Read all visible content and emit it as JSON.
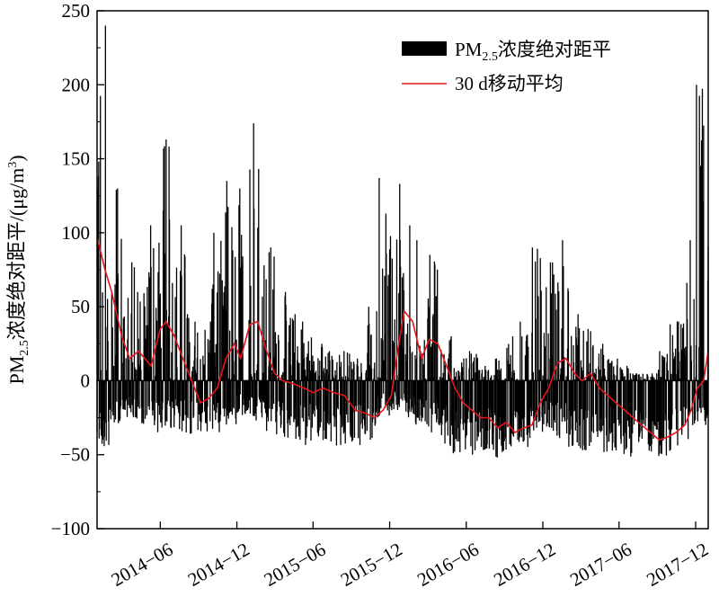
{
  "chart_data": {
    "type": "bar",
    "title": "",
    "ylabel": "PM2.5浓度绝对距平/(μg/m³)",
    "ylabel_parts": {
      "pre": "PM",
      "sub": "2.5",
      "mid": "浓度绝对距平/(μg/m",
      "sup": "3",
      "post": ")"
    },
    "xlabel": "",
    "x_range": [
      "2014-01-01",
      "2017-12-31"
    ],
    "ylim": [
      -100,
      250
    ],
    "y_ticks": [
      -100,
      -50,
      0,
      50,
      100,
      150,
      200,
      250
    ],
    "y_tick_labels": [
      "−100",
      "−50",
      "0",
      "50",
      "100",
      "150",
      "200",
      "250"
    ],
    "x_ticks": [
      "2014-06-01",
      "2014-12-01",
      "2015-06-01",
      "2015-12-01",
      "2016-06-01",
      "2016-12-01",
      "2017-06-01",
      "2017-12-01"
    ],
    "x_tick_labels": [
      "2014−06",
      "2014−12",
      "2015−06",
      "2015−12",
      "2016−06",
      "2016−12",
      "2017−06",
      "2017−12"
    ],
    "grid": false,
    "legend_position": "top-right",
    "legend": [
      {
        "pre": "PM",
        "sub": "2.5",
        "post": "浓度绝对距平",
        "style": "black-bar"
      },
      {
        "text": "30 d移动平均",
        "style": "red-line"
      }
    ],
    "series": [
      {
        "name": "PM2.5浓度绝对距平",
        "kind": "daily-bars",
        "color": "#000000",
        "values_per": "monthly-summary",
        "months": [
          "2014-01",
          "2014-02",
          "2014-03",
          "2014-04",
          "2014-05",
          "2014-06",
          "2014-07",
          "2014-08",
          "2014-09",
          "2014-10",
          "2014-11",
          "2014-12",
          "2015-01",
          "2015-02",
          "2015-03",
          "2015-04",
          "2015-05",
          "2015-06",
          "2015-07",
          "2015-08",
          "2015-09",
          "2015-10",
          "2015-11",
          "2015-12",
          "2016-01",
          "2016-02",
          "2016-03",
          "2016-04",
          "2016-05",
          "2016-06",
          "2016-07",
          "2016-08",
          "2016-09",
          "2016-10",
          "2016-11",
          "2016-12",
          "2017-01",
          "2017-02",
          "2017-03",
          "2017-04",
          "2017-05",
          "2017-06",
          "2017-07",
          "2017-08",
          "2017-09",
          "2017-10",
          "2017-11",
          "2017-12"
        ],
        "monthly_max": [
          240,
          130,
          80,
          60,
          105,
          163,
          105,
          45,
          40,
          100,
          135,
          130,
          174,
          90,
          60,
          45,
          40,
          25,
          20,
          20,
          15,
          50,
          137,
          133,
          105,
          95,
          85,
          30,
          15,
          20,
          10,
          15,
          30,
          40,
          90,
          80,
          95,
          45,
          35,
          25,
          15,
          10,
          5,
          5,
          20,
          40,
          95,
          200
        ],
        "monthly_min": [
          -45,
          -30,
          -25,
          -30,
          -35,
          -35,
          -35,
          -40,
          -38,
          -35,
          -30,
          -25,
          -30,
          -35,
          -38,
          -40,
          -45,
          -48,
          -45,
          -45,
          -45,
          -40,
          -25,
          -20,
          -25,
          -30,
          -35,
          -45,
          -50,
          -52,
          -50,
          -52,
          -50,
          -45,
          -35,
          -35,
          -40,
          -45,
          -48,
          -50,
          -48,
          -52,
          -50,
          -50,
          -52,
          -48,
          -40,
          -30
        ]
      },
      {
        "name": "30 d移动平均",
        "kind": "line",
        "color": "#e8141b",
        "x": [
          "2014-01-01",
          "2014-01-20",
          "2014-02-05",
          "2014-03-01",
          "2014-03-20",
          "2014-04-10",
          "2014-04-25",
          "2014-05-10",
          "2014-06-01",
          "2014-06-15",
          "2014-07-05",
          "2014-07-25",
          "2014-08-15",
          "2014-09-05",
          "2014-09-25",
          "2014-10-15",
          "2014-11-05",
          "2014-11-25",
          "2014-12-10",
          "2015-01-01",
          "2015-01-20",
          "2015-02-10",
          "2015-03-01",
          "2015-03-20",
          "2015-04-15",
          "2015-05-10",
          "2015-06-01",
          "2015-06-25",
          "2015-07-20",
          "2015-08-15",
          "2015-09-10",
          "2015-10-05",
          "2015-10-25",
          "2015-11-15",
          "2015-12-05",
          "2015-12-20",
          "2016-01-05",
          "2016-01-25",
          "2016-02-15",
          "2016-03-05",
          "2016-03-25",
          "2016-04-15",
          "2016-05-05",
          "2016-05-25",
          "2016-06-15",
          "2016-07-05",
          "2016-07-25",
          "2016-08-15",
          "2016-09-05",
          "2016-09-25",
          "2016-10-15",
          "2016-11-05",
          "2016-11-25",
          "2016-12-15",
          "2017-01-05",
          "2017-01-25",
          "2017-02-15",
          "2017-03-05",
          "2017-03-25",
          "2017-04-15",
          "2017-05-05",
          "2017-05-25",
          "2017-06-15",
          "2017-07-05",
          "2017-07-25",
          "2017-08-15",
          "2017-09-05",
          "2017-09-25",
          "2017-10-15",
          "2017-11-05",
          "2017-11-20",
          "2017-12-05",
          "2017-12-20",
          "2017-12-31"
        ],
        "y": [
          97,
          75,
          60,
          30,
          15,
          20,
          15,
          10,
          35,
          40,
          30,
          15,
          0,
          -15,
          -12,
          -5,
          15,
          25,
          15,
          38,
          40,
          20,
          5,
          0,
          -2,
          -5,
          -8,
          -5,
          -8,
          -10,
          -20,
          -22,
          -25,
          -20,
          -10,
          20,
          47,
          40,
          15,
          28,
          25,
          10,
          -5,
          -15,
          -20,
          -25,
          -25,
          -32,
          -28,
          -35,
          -32,
          -30,
          -15,
          -5,
          12,
          15,
          5,
          0,
          5,
          -5,
          -10,
          -15,
          -20,
          -25,
          -30,
          -35,
          -40,
          -38,
          -35,
          -30,
          -20,
          -5,
          0,
          20
        ]
      }
    ]
  }
}
